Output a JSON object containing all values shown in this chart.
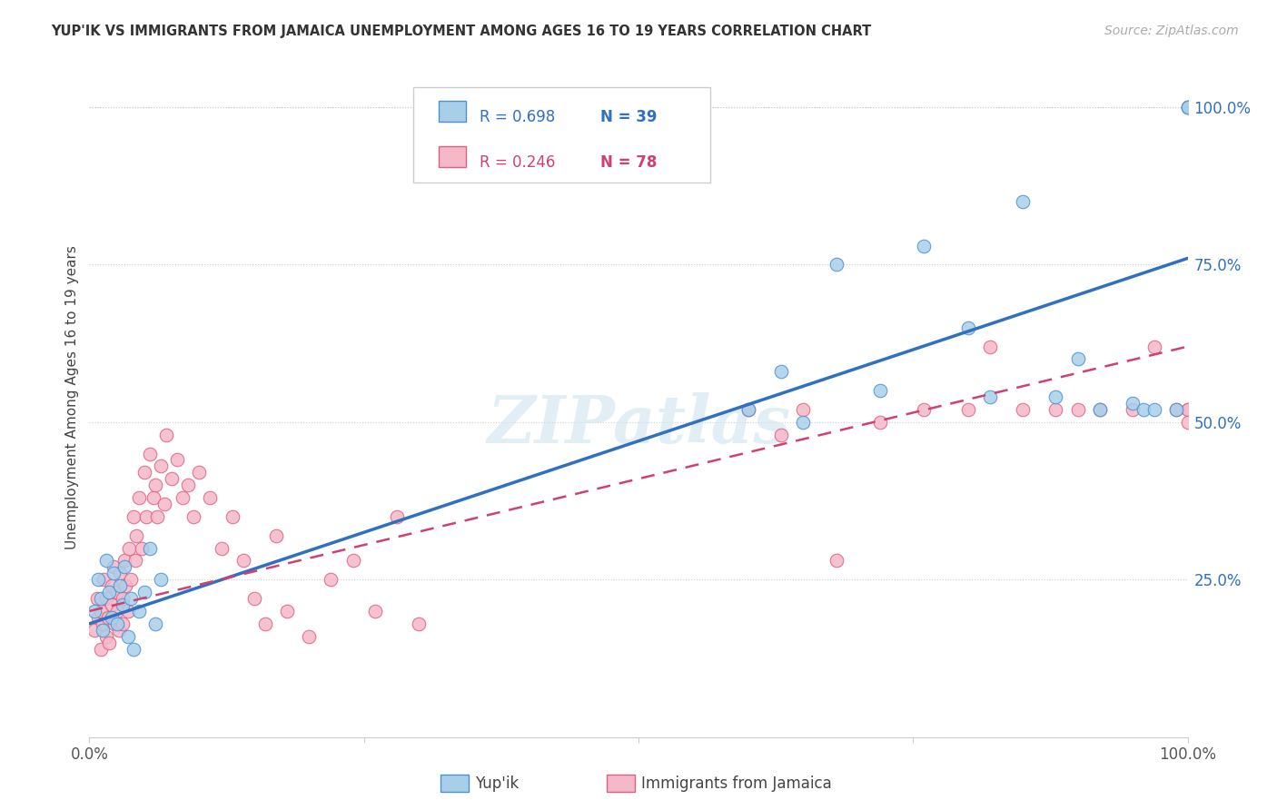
{
  "title": "YUP'IK VS IMMIGRANTS FROM JAMAICA UNEMPLOYMENT AMONG AGES 16 TO 19 YEARS CORRELATION CHART",
  "source": "Source: ZipAtlas.com",
  "ylabel": "Unemployment Among Ages 16 to 19 years",
  "xlim": [
    0,
    1.0
  ],
  "ylim": [
    0.0,
    1.08
  ],
  "grid_color": "#cccccc",
  "background_color": "#ffffff",
  "blue_color": "#a8cfe8",
  "blue_edge_color": "#4a90d9",
  "blue_line_color": "#3070c0",
  "pink_color": "#f5b8c8",
  "pink_edge_color": "#e06080",
  "pink_line_color": "#d04070",
  "legend_r1": "R = 0.698",
  "legend_n1": "N = 39",
  "legend_r2": "R = 0.246",
  "legend_n2": "N = 78",
  "blue_line_x0": 0.0,
  "blue_line_y0": 0.18,
  "blue_line_x1": 1.0,
  "blue_line_y1": 0.76,
  "pink_line_x0": 0.0,
  "pink_line_y0": 0.2,
  "pink_line_x1": 1.0,
  "pink_line_y1": 0.62,
  "blue_points_x": [
    0.005,
    0.008,
    0.01,
    0.012,
    0.015,
    0.018,
    0.02,
    0.022,
    0.025,
    0.028,
    0.03,
    0.032,
    0.035,
    0.038,
    0.04,
    0.045,
    0.05,
    0.055,
    0.06,
    0.065,
    0.6,
    0.63,
    0.65,
    0.68,
    0.72,
    0.76,
    0.8,
    0.82,
    0.85,
    0.88,
    0.9,
    0.92,
    0.95,
    0.96,
    0.97,
    0.99,
    1.0,
    1.0,
    1.0
  ],
  "blue_points_y": [
    0.2,
    0.25,
    0.22,
    0.17,
    0.28,
    0.23,
    0.19,
    0.26,
    0.18,
    0.24,
    0.21,
    0.27,
    0.16,
    0.22,
    0.14,
    0.2,
    0.23,
    0.3,
    0.18,
    0.25,
    0.52,
    0.58,
    0.5,
    0.75,
    0.55,
    0.78,
    0.65,
    0.54,
    0.85,
    0.54,
    0.6,
    0.52,
    0.53,
    0.52,
    0.52,
    0.52,
    1.0,
    1.0,
    1.0
  ],
  "pink_points_x": [
    0.005,
    0.007,
    0.008,
    0.01,
    0.01,
    0.012,
    0.013,
    0.015,
    0.015,
    0.017,
    0.018,
    0.02,
    0.02,
    0.022,
    0.023,
    0.025,
    0.025,
    0.027,
    0.028,
    0.03,
    0.03,
    0.032,
    0.033,
    0.035,
    0.036,
    0.038,
    0.04,
    0.042,
    0.043,
    0.045,
    0.048,
    0.05,
    0.052,
    0.055,
    0.058,
    0.06,
    0.062,
    0.065,
    0.068,
    0.07,
    0.075,
    0.08,
    0.085,
    0.09,
    0.095,
    0.1,
    0.11,
    0.12,
    0.13,
    0.14,
    0.15,
    0.16,
    0.17,
    0.18,
    0.2,
    0.22,
    0.24,
    0.26,
    0.28,
    0.3,
    0.6,
    0.63,
    0.65,
    0.68,
    0.72,
    0.76,
    0.8,
    0.82,
    0.85,
    0.88,
    0.9,
    0.92,
    0.95,
    0.97,
    0.99,
    1.0,
    1.0,
    1.0
  ],
  "pink_points_y": [
    0.17,
    0.22,
    0.19,
    0.14,
    0.2,
    0.18,
    0.25,
    0.16,
    0.22,
    0.19,
    0.15,
    0.24,
    0.21,
    0.27,
    0.18,
    0.23,
    0.2,
    0.17,
    0.26,
    0.22,
    0.18,
    0.28,
    0.24,
    0.2,
    0.3,
    0.25,
    0.35,
    0.28,
    0.32,
    0.38,
    0.3,
    0.42,
    0.35,
    0.45,
    0.38,
    0.4,
    0.35,
    0.43,
    0.37,
    0.48,
    0.41,
    0.44,
    0.38,
    0.4,
    0.35,
    0.42,
    0.38,
    0.3,
    0.35,
    0.28,
    0.22,
    0.18,
    0.32,
    0.2,
    0.16,
    0.25,
    0.28,
    0.2,
    0.35,
    0.18,
    0.52,
    0.48,
    0.52,
    0.28,
    0.5,
    0.52,
    0.52,
    0.62,
    0.52,
    0.52,
    0.52,
    0.52,
    0.52,
    0.62,
    0.52,
    0.52,
    0.52,
    0.5
  ]
}
